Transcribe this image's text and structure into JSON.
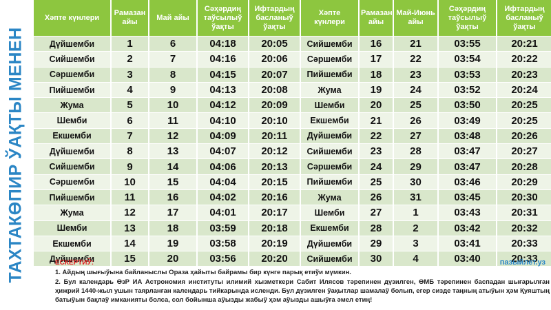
{
  "side_title": "ТАХТАКӨПИР ЎАҚТЫ МЕНЕН",
  "table": {
    "left": {
      "headers": [
        "Хәпте күнлери",
        "Рамазан айы",
        "Май айы",
        "Сәҳәрдиң таўсылыў ўақты",
        "Ифтардың басланыў ўақты"
      ],
      "rows": [
        [
          "Дүйшемби",
          1,
          6,
          "04:18",
          "20:05"
        ],
        [
          "Сийшемби",
          2,
          7,
          "04:16",
          "20:06"
        ],
        [
          "Сәршемби",
          3,
          8,
          "04:15",
          "20:07"
        ],
        [
          "Пийшемби",
          4,
          9,
          "04:13",
          "20:08"
        ],
        [
          "Жума",
          5,
          10,
          "04:12",
          "20:09"
        ],
        [
          "Шемби",
          6,
          11,
          "04:10",
          "20:10"
        ],
        [
          "Екшемби",
          7,
          12,
          "04:09",
          "20:11"
        ],
        [
          "Дүйшемби",
          8,
          13,
          "04:07",
          "20:12"
        ],
        [
          "Сийшемби",
          9,
          14,
          "04:06",
          "20:13"
        ],
        [
          "Сәршемби",
          10,
          15,
          "04:04",
          "20:15"
        ],
        [
          "Пийшемби",
          11,
          16,
          "04:02",
          "20:16"
        ],
        [
          "Жума",
          12,
          17,
          "04:01",
          "20:17"
        ],
        [
          "Шемби",
          13,
          18,
          "03:59",
          "20:18"
        ],
        [
          "Екшемби",
          14,
          19,
          "03:58",
          "20:19"
        ],
        [
          "Дүйшемби",
          15,
          20,
          "03:56",
          "20:20"
        ]
      ]
    },
    "right": {
      "headers": [
        "Хәпте күнлери",
        "Рамазан айы",
        "Май-Июнь айы",
        "Сәҳәрдиң таўсылыў ўақты",
        "Ифтардың басланыў ўақты"
      ],
      "rows": [
        [
          "Сийшемби",
          16,
          21,
          "03:55",
          "20:21"
        ],
        [
          "Сәршемби",
          17,
          22,
          "03:54",
          "20:22"
        ],
        [
          "Пийшемби",
          18,
          23,
          "03:53",
          "20:23"
        ],
        [
          "Жума",
          19,
          24,
          "03:52",
          "20:24"
        ],
        [
          "Шемби",
          20,
          25,
          "03:50",
          "20:25"
        ],
        [
          "Екшемби",
          21,
          26,
          "03:49",
          "20:25"
        ],
        [
          "Дүйшемби",
          22,
          27,
          "03:48",
          "20:26"
        ],
        [
          "Сийшемби",
          23,
          28,
          "03:47",
          "20:27"
        ],
        [
          "Сәршемби",
          24,
          29,
          "03:47",
          "20:28"
        ],
        [
          "Пийшемби",
          25,
          30,
          "03:46",
          "20:29"
        ],
        [
          "Жума",
          26,
          31,
          "03:45",
          "20:30"
        ],
        [
          "Шемби",
          27,
          1,
          "03:43",
          "20:31"
        ],
        [
          "Екшемби",
          28,
          2,
          "03:42",
          "20:32"
        ],
        [
          "Дүйшемби",
          29,
          3,
          "03:41",
          "20:33"
        ],
        [
          "Сийшемби",
          30,
          4,
          "03:40",
          "20:33"
        ]
      ]
    }
  },
  "notes": {
    "title": "ЕСКЕРТИЎ:",
    "site": "пазыйлет.уз",
    "items": [
      "1.   Айдың шығыўына байланыслы Ораза ҳайыты байрамы бир күнге парық етиўи мүмкин.",
      "2.  Бул календарь ӨзР ИА Астрономия институты илимий хызметкери Сабит Илясов тәрепинен дүзилген, ӨМБ тәрепинен баспадан шығарылған ҳижрий 1440-жыл ушын таярланған календарь тийкарында исленди. Бул дүзилген ўақытлар шамалаў болып, егер сизде таңның атыўын ҳәм Қуяштың батыўын бақлаў имканияты болса, сол бойынша аўызды жабыў ҳәм аўызды ашыўға әмел етиң!"
    ]
  }
}
